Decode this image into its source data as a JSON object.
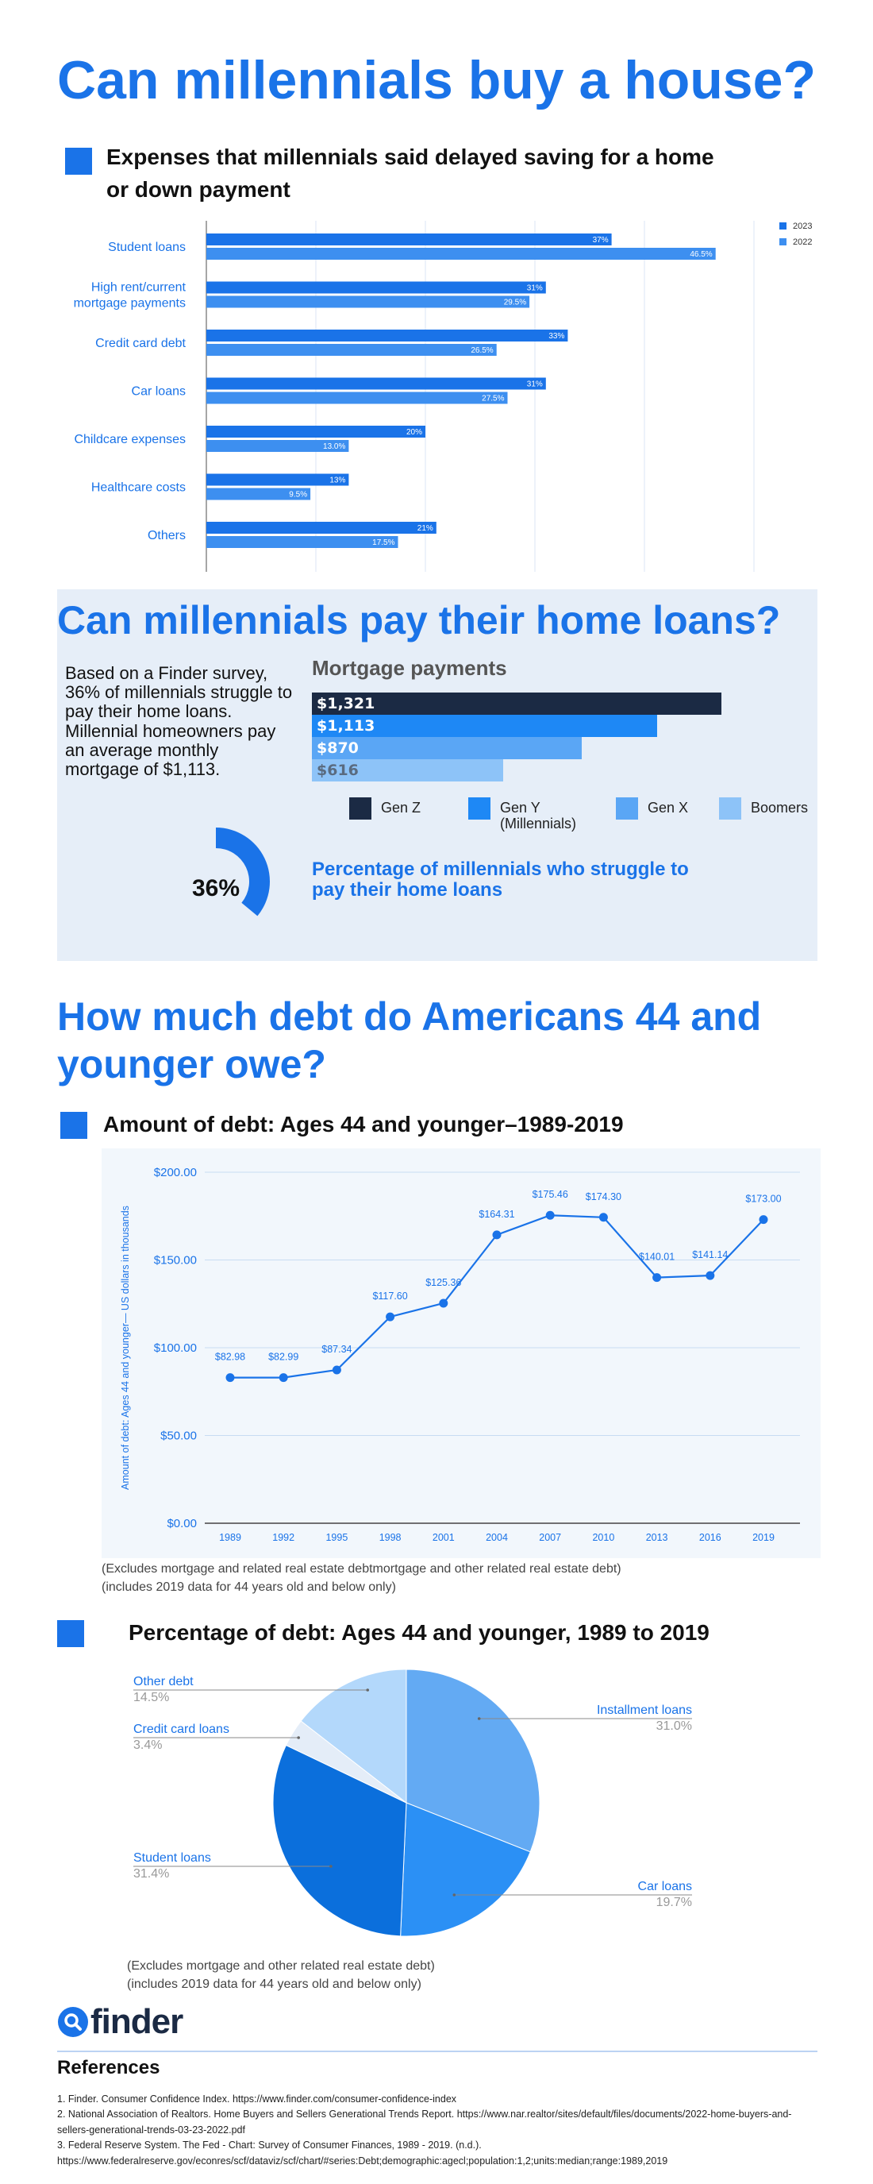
{
  "title": "Can millennials buy a house?",
  "colors": {
    "brand": "#1a73e8",
    "series_2023": "#1a73e8",
    "series_2022": "#3d8ff0",
    "gen_z": "#1b2a44",
    "gen_y": "#1e88f5",
    "gen_x": "#5aa6f5",
    "boomers": "#8dc3f8",
    "panel_bg": "#e6eef8"
  },
  "section1": {
    "heading": "Expenses that millennials said delayed saving for a home or down payment",
    "heading_line1": "Expenses that millennials said delayed saving for a home",
    "heading_line2": "or down payment"
  },
  "section2": {
    "heading": "Can millennials pay their home loans?",
    "survey_text": "Based on a Finder survey, 36% of millennials struggle to pay their home loans. Millennial homeowners pay an average monthly mortgage of $1,113.",
    "mortgage_title": "Mortgage payments",
    "struggle_pct_label": "36%",
    "struggle_caption": "Percentage of millennials who struggle to pay their home loans"
  },
  "section3": {
    "heading": "How much debt do Americans 44 and younger owe?",
    "line_heading": "Amount of debt: Ages 44 and younger–1989-2019",
    "line_note_1": "(Excludes mortgage and related real estate debtmortgage and other related real estate debt)",
    "line_note_2": "(includes 2019 data for 44 years old and below only)",
    "pie_heading": "Percentage of debt: Ages 44 and younger, 1989 to 2019",
    "pie_note_1": "(Excludes mortgage and other related real estate debt)",
    "pie_note_2": "(includes 2019 data for 44 years old and below only)"
  },
  "logo_text": "finder",
  "references": {
    "heading": "References",
    "items": [
      "1. Finder. Consumer Confidence Index. https://www.finder.com/consumer-confidence-index",
      "2. National Association of Realtors. Home Buyers and Sellers Generational Trends Report. https://www.nar.realtor/sites/default/files/documents/2022-home-buyers-and-sellers-generational-trends-03-23-2022.pdf",
      "3. Federal Reserve System. The Fed - Chart: Survey of Consumer Finances, 1989 - 2019. (n.d.). https://www.federalreserve.gov/econres/scf/dataviz/scf/chart/#series:Debt;demographic:agecl;population:1,2;units:median;range:1989,2019"
    ]
  },
  "chart_data": [
    {
      "type": "bar",
      "orientation": "horizontal",
      "categories": [
        "Student loans",
        "High rent/current mortgage payments",
        "Credit card debt",
        "Car loans",
        "Childcare expenses",
        "Healthcare costs",
        "Others"
      ],
      "category_lines": [
        [
          "Student loans"
        ],
        [
          "High rent/current",
          "mortgage payments"
        ],
        [
          "Credit card debt"
        ],
        [
          "Car loans"
        ],
        [
          "Childcare expenses"
        ],
        [
          "Healthcare costs"
        ],
        [
          "Others"
        ]
      ],
      "series": [
        {
          "name": "2023",
          "values": [
            37,
            31,
            33,
            31,
            20,
            13,
            21
          ],
          "labels": [
            "37%",
            "31%",
            "33%",
            "31%",
            "20%",
            "13%",
            "21%"
          ]
        },
        {
          "name": "2022",
          "values": [
            46.5,
            29.5,
            26.5,
            27.5,
            13.0,
            9.5,
            17.5
          ],
          "labels": [
            "46.5%",
            "29.5%",
            "26.5%",
            "27.5%",
            "13.0%",
            "9.5%",
            "17.5%"
          ]
        }
      ],
      "xlim": [
        0,
        50
      ],
      "legend_position": "top-right",
      "grid": true
    },
    {
      "type": "bar",
      "orientation": "horizontal",
      "title": "Mortgage payments",
      "categories": [
        "Gen Z",
        "Gen Y (Millennials)",
        "Gen X",
        "Boomers"
      ],
      "legend_lines": [
        [
          "Gen Z"
        ],
        [
          "Gen Y",
          "(Millennials)"
        ],
        [
          "Gen X"
        ],
        [
          "Boomers"
        ]
      ],
      "values": [
        1321,
        1113,
        870,
        616
      ],
      "labels": [
        "$1,321",
        "$1,113",
        "$870",
        "$616"
      ]
    },
    {
      "type": "pie",
      "title": "Percentage of millennials who struggle to pay their home loans",
      "values": [
        36
      ],
      "labels": [
        "36%"
      ]
    },
    {
      "type": "line",
      "title": "Amount of debt: Ages 44 and younger–1989-2019",
      "ylabel": "Amount of debt: Ages 44 and younger— US dollars in thousands",
      "x": [
        1989,
        1992,
        1995,
        1998,
        2001,
        2004,
        2007,
        2010,
        2013,
        2016,
        2019
      ],
      "y": [
        82.98,
        82.99,
        87.34,
        117.6,
        125.36,
        164.31,
        175.46,
        174.3,
        140.01,
        141.14,
        173.0
      ],
      "point_labels": [
        "$82.98",
        "$82.99",
        "$87.34",
        "$117.60",
        "$125.36",
        "$164.31",
        "$175.46",
        "$174.30",
        "$140.01",
        "$141.14",
        "$173.00"
      ],
      "yticks": [
        "$0.00",
        "$50.00",
        "$100.00",
        "$150.00",
        "$200.00"
      ],
      "ylim": [
        0,
        200
      ],
      "grid": true
    },
    {
      "type": "pie",
      "title": "Percentage of debt: Ages 44 and younger, 1989 to 2019",
      "slices": [
        {
          "name": "Installment loans",
          "value": 31.0,
          "label": "31.0%",
          "color": "#63aaf3"
        },
        {
          "name": "Car loans",
          "value": 19.7,
          "label": "19.7%",
          "color": "#2b90f5"
        },
        {
          "name": "Student loans",
          "value": 31.4,
          "label": "31.4%",
          "color": "#0b6fdc"
        },
        {
          "name": "Credit card loans",
          "value": 3.4,
          "label": "3.4%",
          "color": "#e4edf8"
        },
        {
          "name": "Other debt",
          "value": 14.5,
          "label": "14.5%",
          "color": "#b3d8fb"
        }
      ]
    }
  ]
}
